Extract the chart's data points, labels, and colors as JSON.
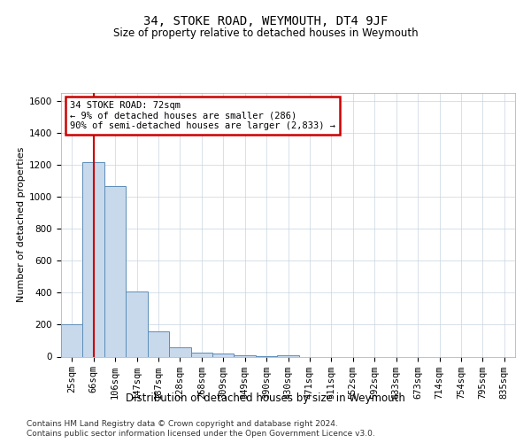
{
  "title1": "34, STOKE ROAD, WEYMOUTH, DT4 9JF",
  "title2": "Size of property relative to detached houses in Weymouth",
  "xlabel": "Distribution of detached houses by size in Weymouth",
  "ylabel": "Number of detached properties",
  "footer1": "Contains HM Land Registry data © Crown copyright and database right 2024.",
  "footer2": "Contains public sector information licensed under the Open Government Licence v3.0.",
  "bin_labels": [
    "25sqm",
    "66sqm",
    "106sqm",
    "147sqm",
    "187sqm",
    "228sqm",
    "268sqm",
    "309sqm",
    "349sqm",
    "390sqm",
    "430sqm",
    "471sqm",
    "511sqm",
    "552sqm",
    "592sqm",
    "633sqm",
    "673sqm",
    "714sqm",
    "754sqm",
    "795sqm",
    "835sqm"
  ],
  "bar_values": [
    200,
    1220,
    1065,
    410,
    160,
    60,
    25,
    18,
    10,
    4,
    10,
    0,
    0,
    0,
    0,
    0,
    0,
    0,
    0,
    0,
    0
  ],
  "bar_color": "#c9d9ec",
  "bar_edge_color": "#5b8db8",
  "red_line_x": 1.0,
  "annotation_line1": "34 STOKE ROAD: 72sqm",
  "annotation_line2": "← 9% of detached houses are smaller (286)",
  "annotation_line3": "90% of semi-detached houses are larger (2,833) →",
  "ylim": [
    0,
    1650
  ],
  "yticks": [
    0,
    200,
    400,
    600,
    800,
    1000,
    1200,
    1400,
    1600
  ],
  "background_color": "#ffffff",
  "grid_color": "#c8d4e0",
  "title1_fontsize": 10,
  "title2_fontsize": 8.5,
  "ylabel_fontsize": 8,
  "xlabel_fontsize": 8.5,
  "tick_fontsize": 7.5,
  "footer_fontsize": 6.5
}
